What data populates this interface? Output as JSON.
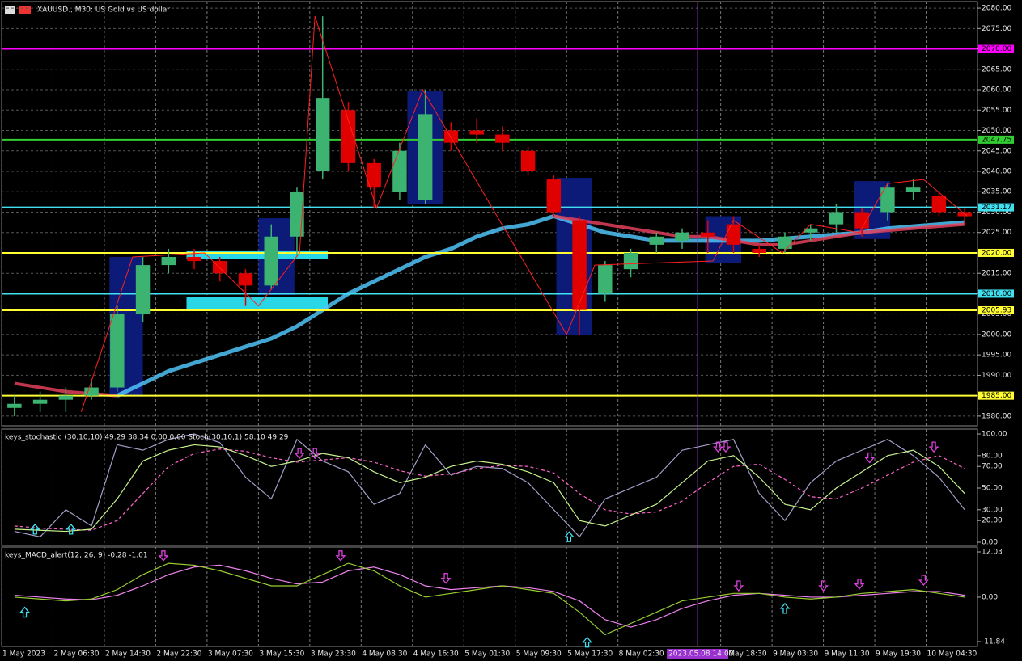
{
  "chart_data": [
    {
      "type": "candlestick",
      "title": "XAUUSD., M30: US Gold vs US dollar",
      "xlim": [
        0,
        38
      ],
      "ylim": [
        1977.6,
        2081.6
      ],
      "grid": true,
      "up_color": "#3cb371",
      "down_color": "#e00000",
      "yticks": [
        {
          "value": 2080,
          "label": "2080.00"
        },
        {
          "value": 2075,
          "label": "2075.00"
        },
        {
          "value": 2070,
          "label": "2070.00"
        },
        {
          "value": 2065,
          "label": "2065.00"
        },
        {
          "value": 2060,
          "label": "2060.00"
        },
        {
          "value": 2055,
          "label": "2055.00"
        },
        {
          "value": 2050,
          "label": "2050.00"
        },
        {
          "value": 2045,
          "label": "2045.00"
        },
        {
          "value": 2040,
          "label": "2040.00"
        },
        {
          "value": 2035,
          "label": "2035.00"
        },
        {
          "value": 2030,
          "label": "2030.00"
        },
        {
          "value": 2025,
          "label": "2025.00"
        },
        {
          "value": 2020,
          "label": "2020.00"
        },
        {
          "value": 2015,
          "label": "2015.00"
        },
        {
          "value": 2010,
          "label": "2010.00"
        },
        {
          "value": 2005,
          "label": "2005.00"
        },
        {
          "value": 2000,
          "label": "2000.00"
        },
        {
          "value": 1995,
          "label": "1995.00"
        },
        {
          "value": 1990,
          "label": "1990.00"
        },
        {
          "value": 1985,
          "label": "1985.00"
        },
        {
          "value": 1980,
          "label": "1980.00"
        }
      ],
      "open": [
        1982,
        1983,
        1984,
        1985,
        1987,
        2005,
        2017,
        2019,
        2018,
        2015,
        2012,
        2024,
        2040,
        2055,
        2042,
        2035,
        2033,
        2050,
        2050,
        2049,
        2045,
        2038,
        2028,
        2010,
        2016,
        2022,
        2023,
        2025,
        2027,
        2021,
        2021,
        2025,
        2027,
        2030,
        2030,
        2035,
        2034,
        2030
      ],
      "high": [
        1985,
        1986,
        1987,
        1989,
        2007,
        2019,
        2021,
        2021,
        2019,
        2016,
        2027,
        2036,
        2078,
        2057,
        2043,
        2047,
        2060,
        2052,
        2053,
        2051,
        2046,
        2039,
        2029,
        2018,
        2021,
        2025,
        2026,
        2028,
        2029,
        2022,
        2025,
        2027,
        2032,
        2031,
        2037,
        2038,
        2035,
        2031
      ],
      "low": [
        1980,
        1981,
        1981,
        1984,
        1986,
        2003,
        2015,
        2016,
        2013,
        2007,
        2011,
        2019,
        2038,
        2040,
        2031,
        2033,
        2032,
        2045,
        2047,
        2045,
        2039,
        2029,
        2000,
        2008,
        2014,
        2020,
        2021,
        2020,
        2020,
        2019,
        2020,
        2023,
        2025,
        2024,
        2028,
        2033,
        2029,
        2027
      ],
      "close": [
        1983,
        1984,
        1985,
        1987,
        2005,
        2017,
        2019,
        2018,
        2015,
        2012,
        2024,
        2035,
        2058,
        2042,
        2036,
        2045,
        2054,
        2047,
        2049,
        2047,
        2040,
        2030,
        2006,
        2017,
        2020,
        2024,
        2025,
        2024,
        2022,
        2020,
        2024,
        2026,
        2030,
        2026,
        2036,
        2036,
        2030,
        2029
      ],
      "boxes": [
        {
          "x0": 4.2,
          "x1": 5.5,
          "low": 1985,
          "high": 2019,
          "color": "#0c1a78"
        },
        {
          "x0": 10,
          "x1": 11.4,
          "low": 2009.7,
          "high": 2028.5,
          "color": "#0c1a78"
        },
        {
          "x0": 15.8,
          "x1": 17.2,
          "low": 2032,
          "high": 2059.6,
          "color": "#0c1a78"
        },
        {
          "x0": 21.6,
          "x1": 23,
          "low": 1999.8,
          "high": 2038.4,
          "color": "#0c1a78"
        },
        {
          "x0": 27.4,
          "x1": 28.8,
          "low": 2017.6,
          "high": 2029,
          "color": "#0c1a78"
        },
        {
          "x0": 33.2,
          "x1": 34.6,
          "low": 2023.4,
          "high": 2037.6,
          "color": "#0c1a78"
        },
        {
          "x0": 7.2,
          "x1": 12.7,
          "low": 2018.6,
          "high": 2020.6,
          "color": "#29d6e6"
        },
        {
          "x0": 7.2,
          "x1": 12.7,
          "low": 2006.1,
          "high": 2009.1,
          "color": "#29d6e6"
        }
      ],
      "lines": [
        {
          "color": "#4fc3f7",
          "width": 5,
          "values": [
            null,
            null,
            null,
            null,
            1985,
            1988,
            1991,
            1993,
            1995,
            1997,
            1999,
            2002,
            2006,
            2010,
            2013,
            2016,
            2019,
            2021,
            2024,
            2026,
            2027,
            2029,
            2027,
            2025,
            2024,
            2023,
            2023,
            2023,
            2023,
            2023,
            2023.5,
            2024,
            2024.5,
            2025,
            2026,
            2026.5,
            2027,
            2027.5
          ]
        },
        {
          "color": "#e0405a",
          "width": 4,
          "values": [
            1988,
            1987,
            1986,
            1985.5,
            1985,
            null,
            null,
            null,
            null,
            null,
            null,
            null,
            null,
            null,
            null,
            null,
            null,
            null,
            null,
            null,
            null,
            2029,
            2028,
            2027,
            2026,
            2025,
            2024,
            2024,
            2023,
            2022,
            2022,
            2023,
            2024,
            2025,
            2025.5,
            2026,
            2026.5,
            2027
          ]
        }
      ],
      "zigzag": {
        "color": "#ff2020",
        "x": [
          3.1,
          5.1,
          7.9,
          10,
          11.6,
          12.2,
          14.6,
          16.4,
          22,
          23.1,
          27.7,
          28.5,
          30.4,
          31.5,
          33.4,
          34.5,
          35.9,
          37.6
        ],
        "values": [
          1981,
          2019,
          2020,
          2007,
          2020,
          2078,
          2031,
          2060,
          2000,
          2017,
          2018,
          2028,
          2020,
          2027,
          2025,
          2037,
          2038,
          2029
        ]
      },
      "levels": [
        {
          "value": 2070,
          "label": "2070.00",
          "color": "#ff00ff"
        },
        {
          "value": 2047.75,
          "label": "2047.75",
          "color": "#32cd32"
        },
        {
          "value": 2031.17,
          "label": "2031.17",
          "color": "#40e0f0"
        },
        {
          "value": 2020,
          "label": "2020.00",
          "color": "#ffff33"
        },
        {
          "value": 2010,
          "label": "2010.00",
          "color": "#40e0f0"
        },
        {
          "value": 2005.93,
          "label": "2005.93",
          "color": "#ffff33"
        },
        {
          "value": 1985,
          "label": "1985.00",
          "color": "#ffff33"
        }
      ]
    },
    {
      "type": "line",
      "title": "keys_stochastic (30,10,10) 49.29 38.34 0.00 0.00 Stoch(30,10,1) 58.10 49.29",
      "xlim": [
        0,
        38
      ],
      "ylim": [
        -3,
        104.5
      ],
      "yticks": [
        {
          "value": 100,
          "label": "100.00"
        },
        {
          "value": 80,
          "label": "80.00"
        },
        {
          "value": 70,
          "label": "70.00"
        },
        {
          "value": 50,
          "label": "50.00"
        },
        {
          "value": 30,
          "label": "30.00"
        },
        {
          "value": 20,
          "label": "20.00"
        },
        {
          "value": 0,
          "label": "0.00"
        }
      ],
      "series": [
        {
          "color": "#a0a0c8",
          "dash": false,
          "values": [
            10,
            5,
            30,
            15,
            90,
            85,
            95,
            100,
            92,
            60,
            40,
            95,
            75,
            65,
            35,
            45,
            90,
            62,
            70,
            68,
            55,
            30,
            5,
            40,
            50,
            60,
            85,
            90,
            95,
            45,
            20,
            55,
            75,
            85,
            95,
            80,
            60,
            30
          ]
        },
        {
          "color": "#ff66cc",
          "dash": true,
          "values": [
            15,
            13,
            12,
            11,
            20,
            45,
            70,
            82,
            86,
            84,
            78,
            74,
            76,
            78,
            74,
            66,
            61,
            63,
            68,
            71,
            70,
            64,
            45,
            30,
            26,
            28,
            38,
            55,
            70,
            72,
            58,
            42,
            40,
            50,
            62,
            74,
            80,
            68
          ]
        },
        {
          "color": "#c5f28c",
          "dash": false,
          "values": [
            12,
            11,
            10,
            12,
            40,
            75,
            85,
            90,
            88,
            80,
            70,
            75,
            82,
            78,
            65,
            55,
            60,
            70,
            75,
            72,
            65,
            55,
            20,
            15,
            25,
            35,
            55,
            75,
            80,
            60,
            35,
            30,
            50,
            65,
            80,
            85,
            70,
            45
          ]
        }
      ],
      "up_arrows": [
        {
          "x": 1.3,
          "y": 12
        },
        {
          "x": 2.7,
          "y": 12
        },
        {
          "x": 22.1,
          "y": 5
        }
      ],
      "down_arrows": [
        {
          "x": 11.6,
          "y": 82
        },
        {
          "x": 12.2,
          "y": 82
        },
        {
          "x": 27.9,
          "y": 88
        },
        {
          "x": 28.2,
          "y": 88
        },
        {
          "x": 33.8,
          "y": 78
        },
        {
          "x": 36.3,
          "y": 88
        }
      ]
    },
    {
      "type": "line",
      "title": "keys_MACD_alert(12, 26, 9) -0.28 -1.01",
      "xlim": [
        0,
        38
      ],
      "ylim": [
        -13.13,
        13.32
      ],
      "yticks": [
        {
          "value": 12.03,
          "label": "12.03"
        },
        {
          "value": 0,
          "label": "0.00"
        },
        {
          "value": -11.84,
          "label": "-11.84"
        }
      ],
      "series": [
        {
          "color": "#ee82ee",
          "dash": false,
          "values": [
            0.5,
            0,
            -0.5,
            -0.7,
            0.5,
            3,
            6,
            8,
            8.5,
            7,
            5,
            3.5,
            4,
            7,
            8,
            6,
            3,
            2,
            2.5,
            3,
            2.5,
            1.5,
            -1,
            -6,
            -8,
            -6,
            -3,
            -1,
            0.5,
            1,
            0.5,
            0,
            0,
            0.5,
            1,
            1.5,
            1.5,
            0.5
          ]
        },
        {
          "color": "#9acd32",
          "dash": false,
          "values": [
            0,
            -0.5,
            -1,
            -0.5,
            2,
            6,
            9,
            8.5,
            7,
            5,
            3,
            3,
            6,
            9,
            7,
            3,
            0,
            1,
            2,
            3,
            2,
            1,
            -4,
            -10,
            -7,
            -4,
            -1,
            0,
            1,
            1,
            0,
            -0.5,
            0,
            1,
            1.5,
            2,
            1,
            0
          ]
        }
      ],
      "up_arrows": [
        {
          "x": 0.9,
          "y": -4
        },
        {
          "x": 22.8,
          "y": -12
        },
        {
          "x": 30.5,
          "y": -3
        }
      ],
      "down_arrows": [
        {
          "x": 6.3,
          "y": 11
        },
        {
          "x": 13.2,
          "y": 11
        },
        {
          "x": 17.3,
          "y": 5
        },
        {
          "x": 28.7,
          "y": 3
        },
        {
          "x": 32,
          "y": 3
        },
        {
          "x": 33.4,
          "y": 3.5
        },
        {
          "x": 35.9,
          "y": 4.5
        }
      ],
      "xticks": [
        {
          "value": 0,
          "label": "1 May 2023"
        },
        {
          "value": 2,
          "label": "2 May 06:30"
        },
        {
          "value": 4,
          "label": "2 May 14:30"
        },
        {
          "value": 6,
          "label": "2 May 22:30"
        },
        {
          "value": 8,
          "label": "3 May 07:30"
        },
        {
          "value": 10,
          "label": "3 May 15:30"
        },
        {
          "value": 12,
          "label": "3 May 23:30"
        },
        {
          "value": 14,
          "label": "4 May 08:30"
        },
        {
          "value": 16,
          "label": "4 May 16:30"
        },
        {
          "value": 18,
          "label": "5 May 01:30"
        },
        {
          "value": 20,
          "label": "5 May 09:30"
        },
        {
          "value": 22,
          "label": "5 May 17:30"
        },
        {
          "value": 24,
          "label": "8 May 02:30"
        },
        {
          "value": 28,
          "label": "8 May 18:30"
        },
        {
          "value": 30,
          "label": "9 May 03:30"
        },
        {
          "value": 32,
          "label": "9 May 11:30"
        },
        {
          "value": 34,
          "label": "9 May 19:30"
        },
        {
          "value": 36,
          "label": "10 May 04:30"
        }
      ],
      "cursor": {
        "value": 27.1,
        "label": "2023.05.08 14:00",
        "color": "#9b30d0"
      }
    }
  ]
}
